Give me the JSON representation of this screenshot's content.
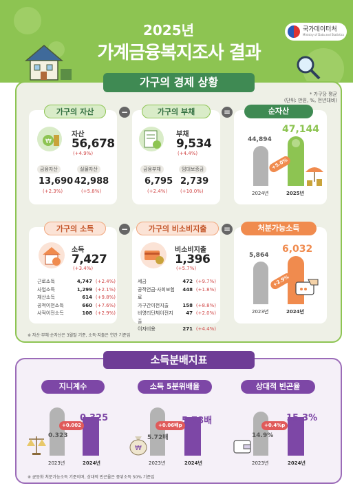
{
  "header": {
    "year": "2025년",
    "title": "가계금융복지조사 결과",
    "logo_text": "국가데이터처",
    "logo_sub": "Ministry of Data and Statistics"
  },
  "section1": {
    "tab": "가구의 경제 상황",
    "unit_line1": "* 가구당 평균",
    "unit_line2": "(단위: 만원, %, 전년대비)",
    "assets": {
      "pill": "가구의 자산",
      "label": "자산",
      "value": "56,678",
      "change": "(+4.9%)",
      "sub1_label": "금융자산",
      "sub1_value": "13,690",
      "sub1_change": "(+2.3%)",
      "sub2_label": "실물자산",
      "sub2_value": "42,988",
      "sub2_change": "(+5.8%)"
    },
    "op_minus1": "−",
    "debt": {
      "pill": "가구의 부채",
      "label": "부채",
      "value": "9,534",
      "change": "(+4.4%)",
      "sub1_label": "금융부채",
      "sub1_value": "6,795",
      "sub1_change": "(+2.4%)",
      "sub2_label": "임대보증금",
      "sub2_value": "2,739",
      "sub2_change": "(+10.0%)"
    },
    "op_equal1": "=",
    "net": {
      "pill": "순자산",
      "v2024": "44,894",
      "v2025": "47,144",
      "growth": "+5.0%",
      "y1": "2024년",
      "y2": "2025년"
    },
    "income": {
      "pill": "가구의 소득",
      "label": "소득",
      "value": "7,427",
      "change": "(+3.4%)",
      "items": [
        {
          "name": "근로소득",
          "value": "4,747",
          "change": "(+2.4%)"
        },
        {
          "name": "사업소득",
          "value": "1,299",
          "change": "(+2.1%)"
        },
        {
          "name": "재산소득",
          "value": "614",
          "change": "(+9.8%)"
        },
        {
          "name": "공적이전소득",
          "value": "660",
          "change": "(+7.6%)"
        },
        {
          "name": "사적이전소득",
          "value": "108",
          "change": "(+2.9%)"
        }
      ]
    },
    "op_minus2": "−",
    "nonconsump": {
      "pill": "가구의 비소비지출",
      "label": "비소비지출",
      "value": "1,396",
      "change": "(+5.7%)",
      "items": [
        {
          "name": "세금",
          "value": "472",
          "change": "(+9.7%)"
        },
        {
          "name": "공적연금·사회보험료",
          "value": "448",
          "change": "(+1.8%)"
        },
        {
          "name": "가구간이전지출",
          "value": "158",
          "change": "(+8.8%)"
        },
        {
          "name": "비영리단체이전지출",
          "value": "47",
          "change": "(+2.0%)"
        },
        {
          "name": "이자비용",
          "value": "271",
          "change": "(+4.4%)"
        }
      ]
    },
    "op_equal2": "=",
    "disposable": {
      "pill": "처분가능소득",
      "v2023": "5,864",
      "v2024": "6,032",
      "growth": "+2.9%",
      "y1": "2023년",
      "y2": "2024년"
    },
    "footnote": "※ 자산·부채·순자산은 3월말 기준, 소득·지출은 연간 기준임"
  },
  "section2": {
    "tab": "소득분배지표",
    "gini": {
      "pill": "지니계수",
      "v2023": "0.323",
      "v2024": "0.325",
      "change": "+0.002",
      "y1": "2023년",
      "y2": "2024년"
    },
    "quintile": {
      "pill": "소득 5분위배율",
      "v2023": "5.72배",
      "v2024": "5.78배",
      "change": "+0.06배p",
      "y1": "2023년",
      "y2": "2024년"
    },
    "poverty": {
      "pill": "상대적 빈곤율",
      "v2023": "14.9%",
      "v2024": "15.3%",
      "change": "+0.4%p",
      "y1": "2023년",
      "y2": "2024년"
    },
    "footnote": "※ 균등화 처분가능소득 기준이며, 상대적 빈곤율은 중위소득 50% 기준임"
  },
  "colors": {
    "green": "#8dc452",
    "dark_green": "#3f8a53",
    "orange": "#f08b4e",
    "purple": "#7d47a6",
    "gray_bar": "#b3b3b3"
  }
}
